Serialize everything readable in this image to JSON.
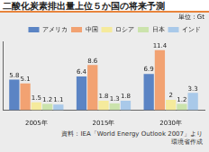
{
  "chart_data": {
    "type": "bar",
    "title": "二酸化炭素排出量上位５か国の将来予測",
    "subtitle": "単位：Gt",
    "annotations": [
      "資料：IEA「World Energy Outlook 2007」より環境省作成"
    ],
    "categories": [
      "2005年",
      "2015年",
      "2030年"
    ],
    "series": [
      {
        "name": "アメリカ",
        "color": "#5b84c4",
        "values": [
          5.8,
          6.4,
          6.9
        ]
      },
      {
        "name": "中国",
        "color": "#f2a272",
        "values": [
          5.1,
          8.6,
          11.4
        ]
      },
      {
        "name": "ロシア",
        "color": "#f5ea9c",
        "values": [
          1.5,
          1.8,
          2
        ]
      },
      {
        "name": "日本",
        "color": "#cbe3ac",
        "values": [
          1.2,
          1.3,
          1.2
        ]
      },
      {
        "name": "インド",
        "color": "#a9c9e9",
        "values": [
          1.1,
          1.8,
          3.3
        ]
      }
    ],
    "ylim": [
      0,
      13
    ],
    "grid": false,
    "legend": "upper right",
    "data_labels": true,
    "tick_labels": "x"
  }
}
